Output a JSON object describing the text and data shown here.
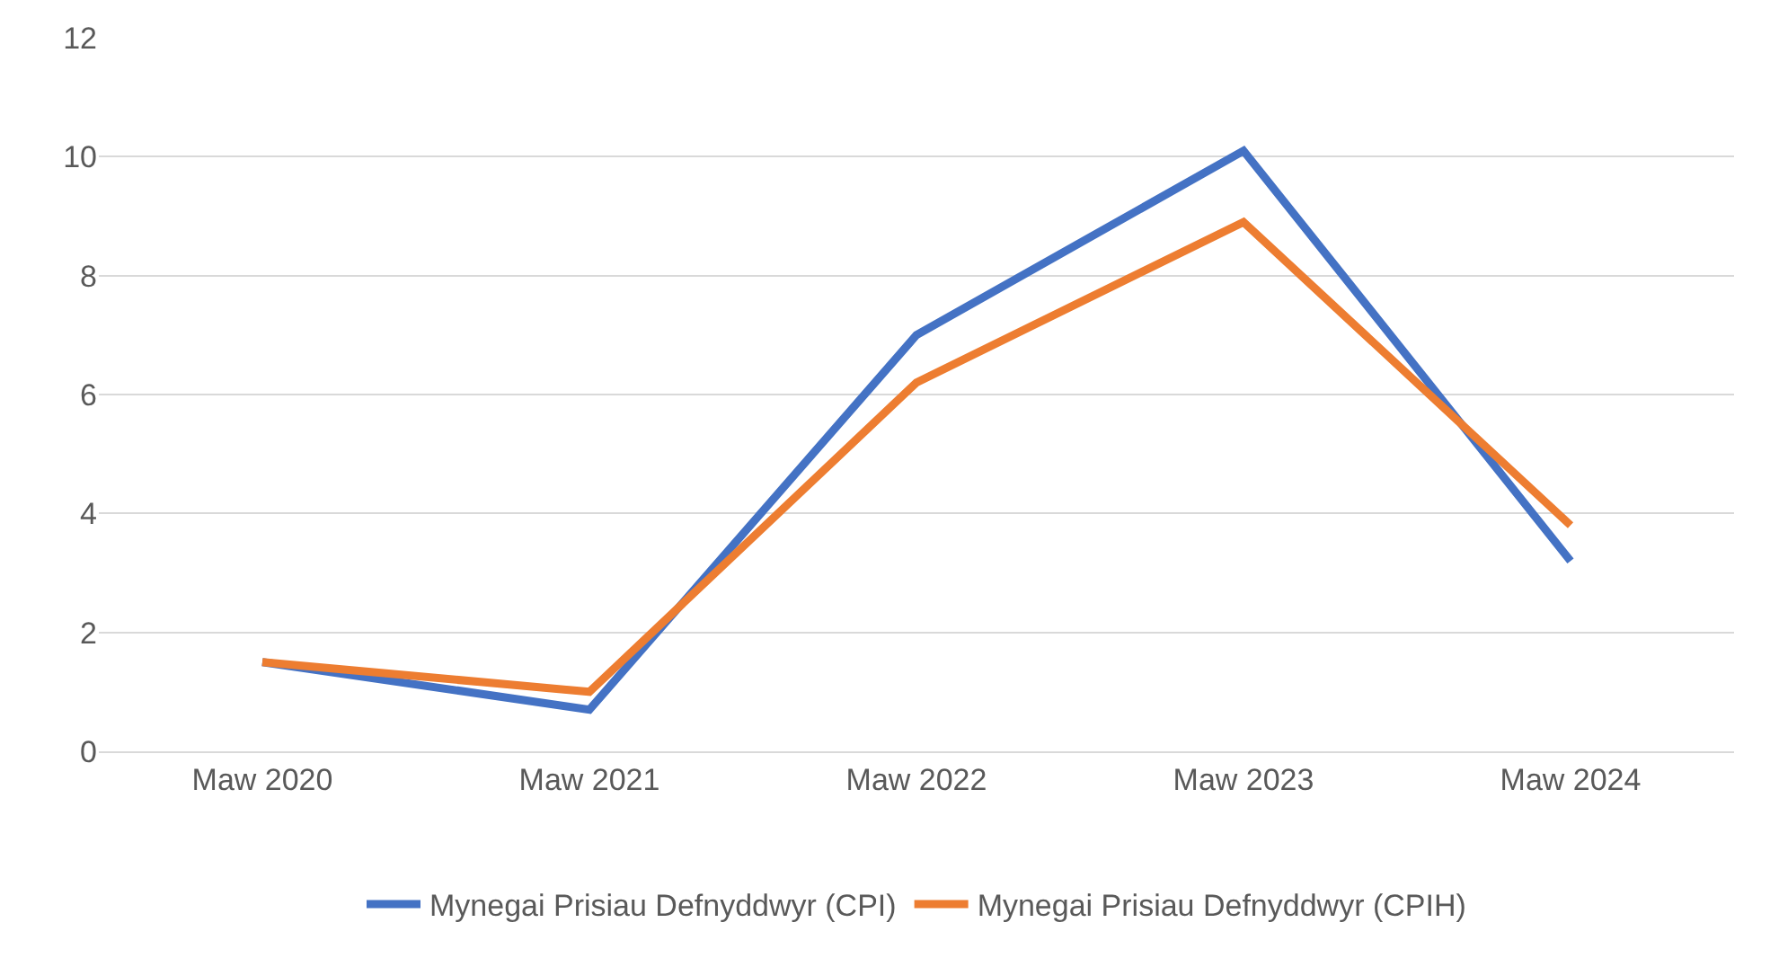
{
  "chart_data": {
    "type": "line",
    "categories": [
      "Maw 2020",
      "Maw 2021",
      "Maw 2022",
      "Maw 2023",
      "Maw 2024"
    ],
    "series": [
      {
        "name": "Mynegai Prisiau Defnyddwyr (CPI)",
        "color": "#4472c4",
        "values": [
          1.5,
          0.7,
          7.0,
          10.1,
          3.2
        ]
      },
      {
        "name": "Mynegai Prisiau Defnyddwyr (CPIH)",
        "color": "#ed7d31",
        "values": [
          1.5,
          1.0,
          6.2,
          8.9,
          3.8
        ]
      }
    ],
    "ylim": [
      0,
      12
    ],
    "yticks": [
      0,
      2,
      4,
      6,
      8,
      10,
      12
    ],
    "grid": "y",
    "legend": "bottom",
    "marker": "none",
    "line_style": "solid"
  }
}
